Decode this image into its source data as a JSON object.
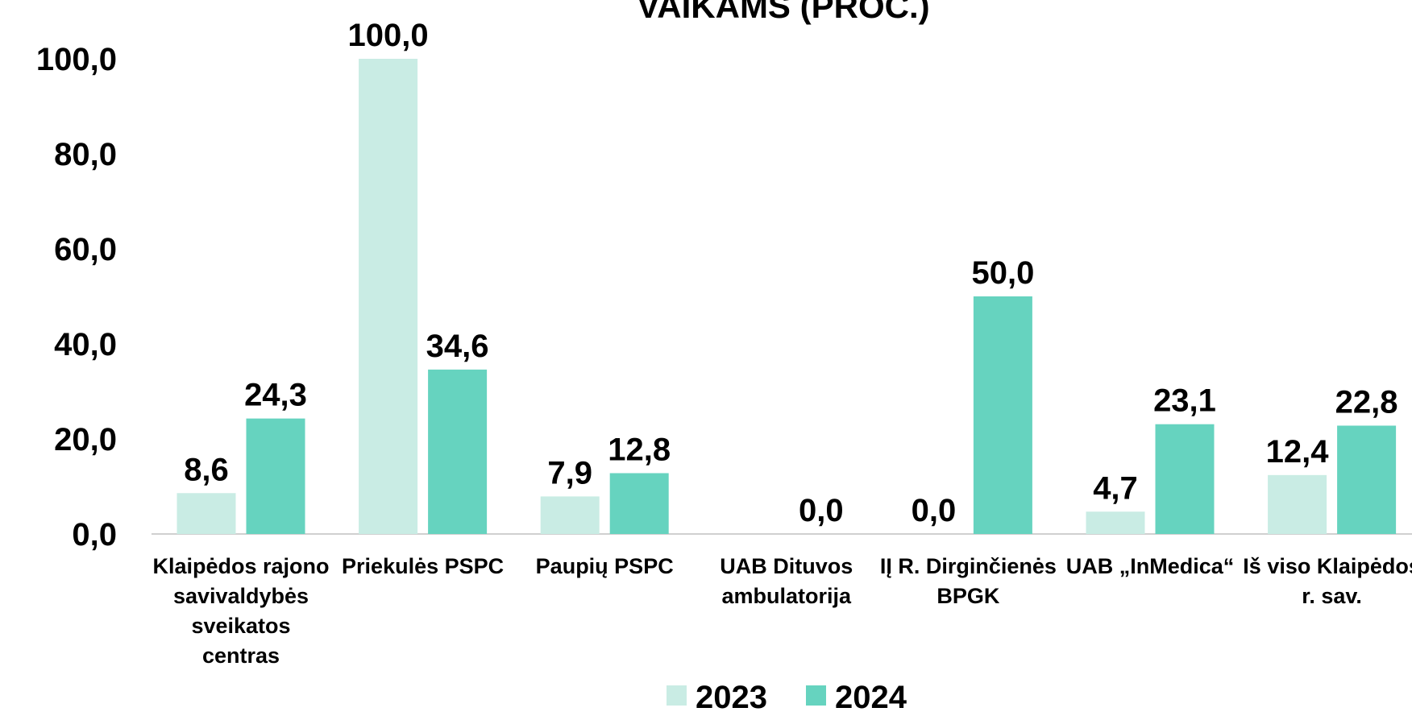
{
  "chart_data": {
    "type": "bar",
    "title": "VAIKAMS (PROC.)",
    "categories": [
      "Klaipėdos rajono savivaldybės sveikatos centras",
      "Priekulės PSPC",
      "Paupių PSPC",
      "UAB Dituvos ambulatorija",
      "IĮ R. Dirginčienės BPGK",
      "UAB „InMedica“",
      "Iš viso Klaipėdos r. sav."
    ],
    "series": [
      {
        "name": "2023",
        "color": "#c9ece4",
        "values": [
          8.6,
          100.0,
          7.9,
          null,
          0.0,
          4.7,
          12.4
        ],
        "value_labels": [
          "8,6",
          "100,0",
          "7,9",
          null,
          "0,0",
          "4,7",
          "12,4"
        ]
      },
      {
        "name": "2024",
        "color": "#66d3bf",
        "values": [
          24.3,
          34.6,
          12.8,
          0.0,
          50.0,
          23.1,
          22.8
        ],
        "value_labels": [
          "24,3",
          "34,6",
          "12,8",
          "0,0",
          "50,0",
          "23,1",
          "22,8"
        ]
      }
    ],
    "ylim": [
      0,
      100
    ],
    "yticks": [
      {
        "value": 0,
        "label": "0,0"
      },
      {
        "value": 20,
        "label": "20,0"
      },
      {
        "value": 40,
        "label": "40,0"
      },
      {
        "value": 60,
        "label": "60,0"
      },
      {
        "value": 80,
        "label": "80,0"
      },
      {
        "value": 100,
        "label": "100,0"
      }
    ],
    "grid": false,
    "legend": "bottom"
  }
}
